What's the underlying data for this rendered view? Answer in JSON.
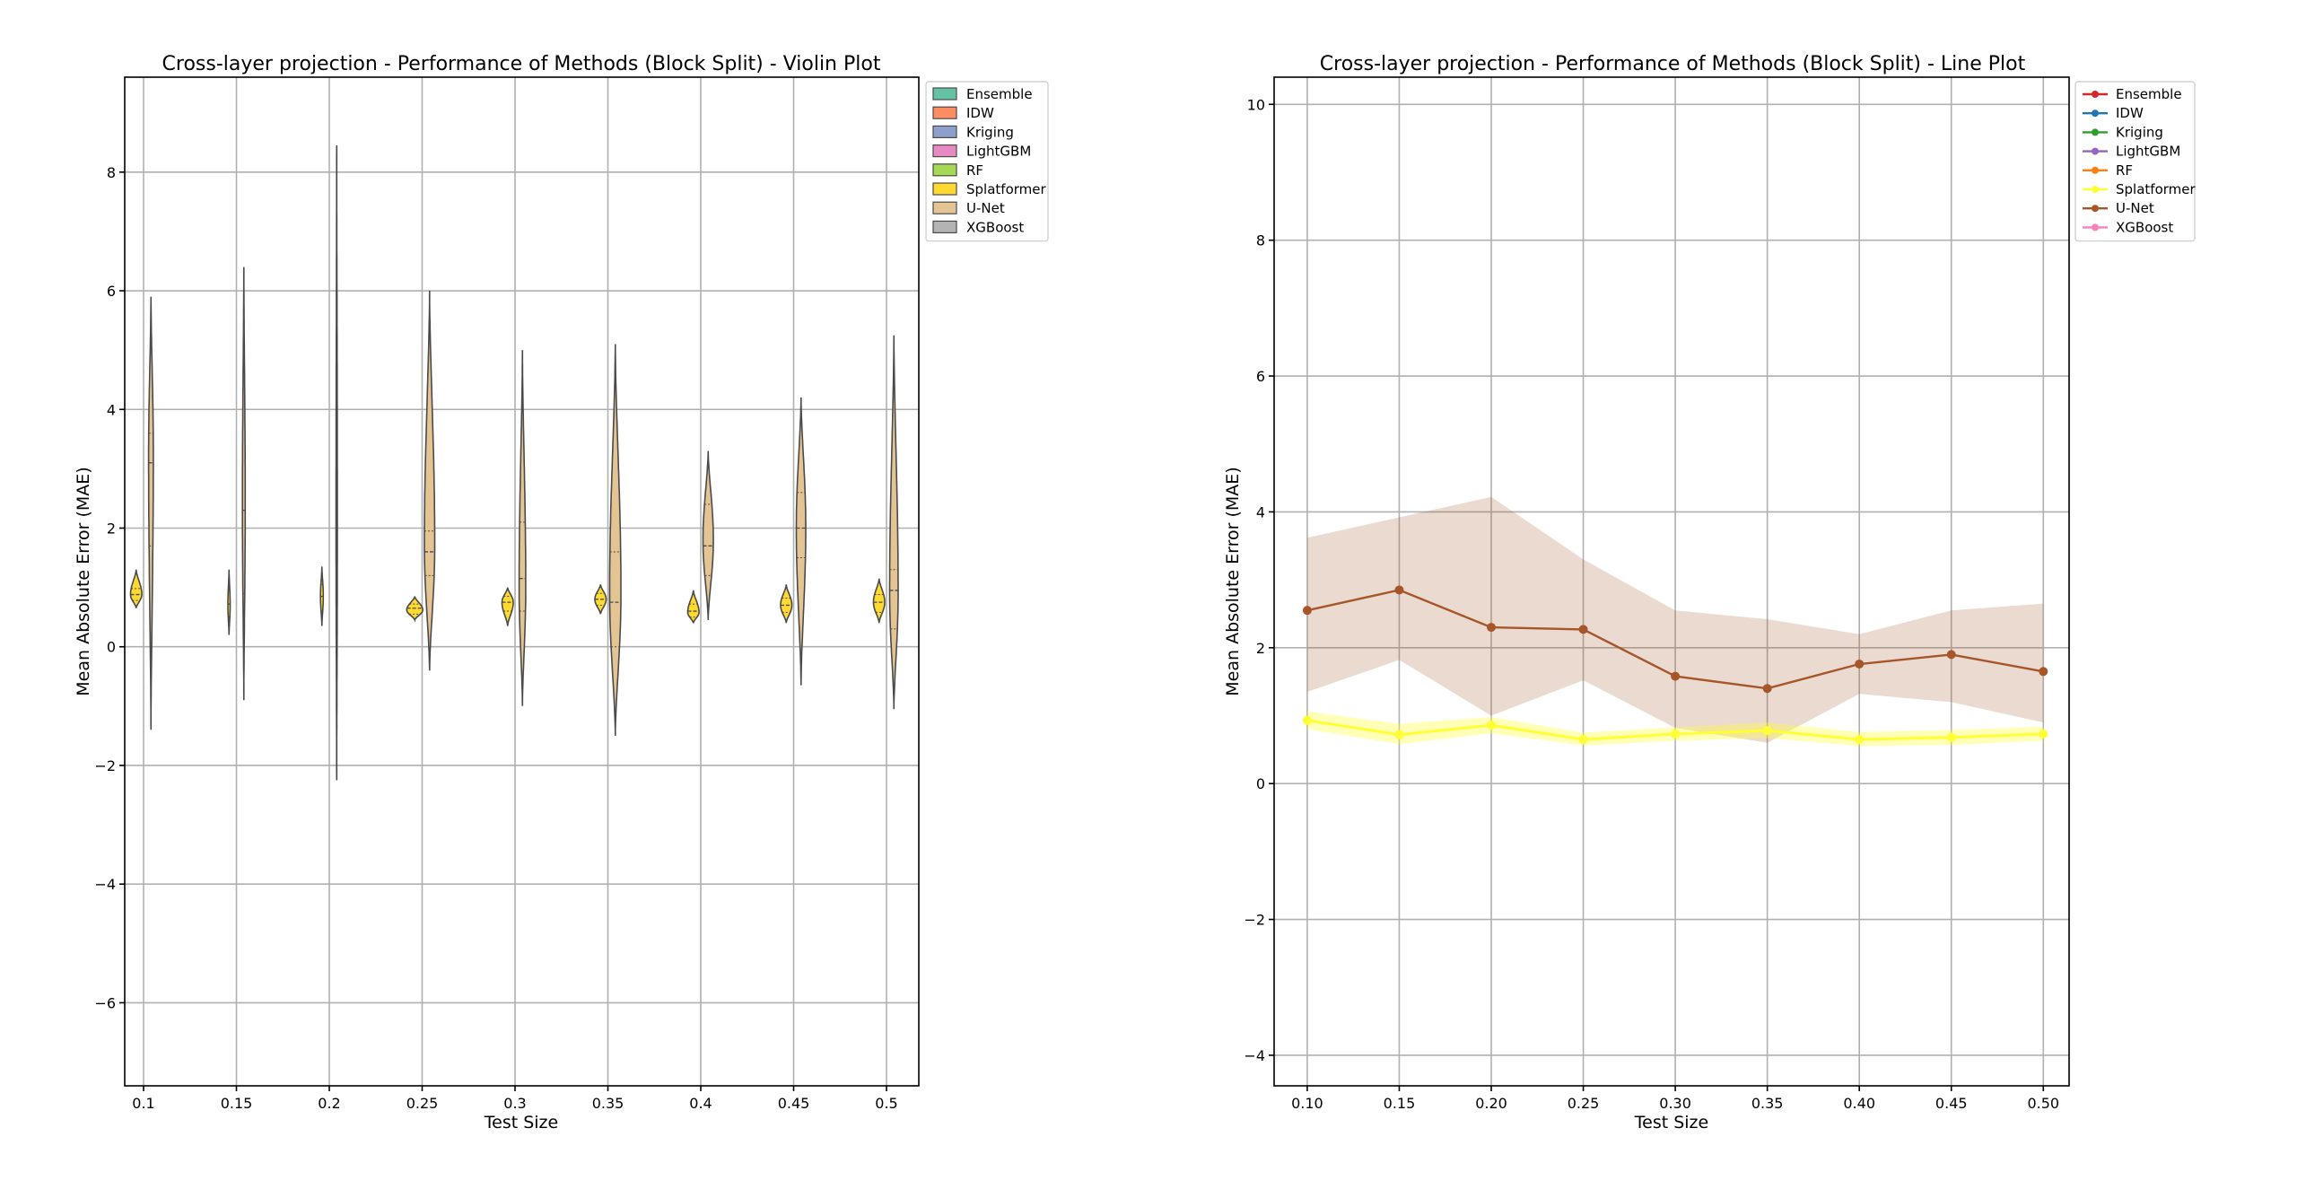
{
  "chart_data": [
    {
      "type": "violin",
      "title": "Cross-layer projection - Performance of Methods (Block Split) - Violin Plot",
      "xlabel": "Test Size",
      "ylabel": "Mean Absolute Error (MAE)",
      "categories": [
        "0.1",
        "0.15",
        "0.2",
        "0.25",
        "0.3",
        "0.35",
        "0.4",
        "0.45",
        "0.5"
      ],
      "ylim": [
        -7.4,
        9.6
      ],
      "yticks": [
        -6,
        -4,
        -2,
        0,
        2,
        4,
        6,
        8
      ],
      "grid": true,
      "legend_position": "outside-top-right",
      "legend": [
        {
          "name": "Ensemble",
          "color": "#66c2a5"
        },
        {
          "name": "IDW",
          "color": "#fc8d62"
        },
        {
          "name": "Kriging",
          "color": "#8da0cb"
        },
        {
          "name": "LightGBM",
          "color": "#e78ac3"
        },
        {
          "name": "RF",
          "color": "#a6d854"
        },
        {
          "name": "Splatformer",
          "color": "#ffd92f"
        },
        {
          "name": "U-Net",
          "color": "#e5c494"
        },
        {
          "name": "XGBoost",
          "color": "#b3b3b3"
        }
      ],
      "series": [
        {
          "name": "Splatformer",
          "violins": [
            {
              "min": 0.65,
              "max": 1.3,
              "q1": 0.78,
              "median": 0.88,
              "q3": 0.98,
              "mode": 0.88,
              "width": 0.6
            },
            {
              "min": 0.2,
              "max": 1.3,
              "q1": 0.5,
              "median": 0.72,
              "q3": 0.95,
              "mode": 0.7,
              "width": 0.12
            },
            {
              "min": 0.35,
              "max": 1.35,
              "q1": 0.6,
              "median": 0.85,
              "q3": 1.05,
              "mode": 0.85,
              "width": 0.15
            },
            {
              "min": 0.45,
              "max": 0.85,
              "q1": 0.55,
              "median": 0.65,
              "q3": 0.72,
              "mode": 0.62,
              "width": 0.85
            },
            {
              "min": 0.35,
              "max": 1.0,
              "q1": 0.6,
              "median": 0.75,
              "q3": 0.85,
              "mode": 0.75,
              "width": 0.6
            },
            {
              "min": 0.55,
              "max": 1.05,
              "q1": 0.7,
              "median": 0.8,
              "q3": 0.9,
              "mode": 0.8,
              "width": 0.6
            },
            {
              "min": 0.4,
              "max": 0.95,
              "q1": 0.5,
              "median": 0.6,
              "q3": 0.72,
              "mode": 0.58,
              "width": 0.6
            },
            {
              "min": 0.4,
              "max": 1.05,
              "q1": 0.58,
              "median": 0.7,
              "q3": 0.82,
              "mode": 0.7,
              "width": 0.6
            },
            {
              "min": 0.4,
              "max": 1.15,
              "q1": 0.58,
              "median": 0.75,
              "q3": 0.88,
              "mode": 0.75,
              "width": 0.6
            }
          ]
        },
        {
          "name": "U-Net",
          "violins": [
            {
              "min": -1.4,
              "max": 5.9,
              "q1": 1.7,
              "median": 3.1,
              "q3": 3.6,
              "mode": 3.2,
              "width": 0.25
            },
            {
              "min": -0.9,
              "max": 6.4,
              "q1": 0.9,
              "median": 2.3,
              "q3": 4.8,
              "mode": 2.4,
              "width": 0.15
            },
            {
              "min": -2.25,
              "max": 8.45,
              "q1": 0.4,
              "median": 2.0,
              "q3": 3.5,
              "mode": 2.0,
              "width": 0.07
            },
            {
              "min": -0.4,
              "max": 6.0,
              "q1": 1.2,
              "median": 1.6,
              "q3": 1.95,
              "mode": 1.7,
              "width": 0.55
            },
            {
              "min": -1.0,
              "max": 5.0,
              "q1": 0.6,
              "median": 1.15,
              "q3": 2.1,
              "mode": 1.0,
              "width": 0.35
            },
            {
              "min": -1.5,
              "max": 5.1,
              "q1": 0.0,
              "median": 0.75,
              "q3": 1.6,
              "mode": 0.9,
              "width": 0.6
            },
            {
              "min": 0.45,
              "max": 3.3,
              "q1": 1.2,
              "median": 1.7,
              "q3": 2.4,
              "mode": 1.8,
              "width": 0.55
            },
            {
              "min": -0.65,
              "max": 4.2,
              "q1": 1.5,
              "median": 2.0,
              "q3": 2.6,
              "mode": 2.0,
              "width": 0.5
            },
            {
              "min": -1.05,
              "max": 5.25,
              "q1": 0.3,
              "median": 0.95,
              "q3": 1.3,
              "mode": 0.9,
              "width": 0.45
            }
          ]
        }
      ]
    },
    {
      "type": "line",
      "title": "Cross-layer projection - Performance of Methods (Block Split) - Line Plot",
      "xlabel": "Test Size",
      "ylabel": "Mean Absolute Error (MAE)",
      "x": [
        0.1,
        0.15,
        0.2,
        0.25,
        0.3,
        0.35,
        0.4,
        0.45,
        0.5
      ],
      "xticklabels": [
        "0.10",
        "0.15",
        "0.20",
        "0.25",
        "0.30",
        "0.35",
        "0.40",
        "0.45",
        "0.50"
      ],
      "xlim": [
        0.082,
        0.514
      ],
      "ylim": [
        -4.45,
        10.4
      ],
      "yticks": [
        -4,
        -2,
        0,
        2,
        4,
        6,
        8,
        10
      ],
      "grid": true,
      "legend_position": "top-right",
      "legend": [
        {
          "name": "Ensemble",
          "color": "#d62728"
        },
        {
          "name": "IDW",
          "color": "#1f77b4"
        },
        {
          "name": "Kriging",
          "color": "#2ca02c"
        },
        {
          "name": "LightGBM",
          "color": "#9467bd"
        },
        {
          "name": "RF",
          "color": "#ff7f0e"
        },
        {
          "name": "Splatformer",
          "color": "#ffff33"
        },
        {
          "name": "U-Net",
          "color": "#a65628"
        },
        {
          "name": "XGBoost",
          "color": "#f781bf"
        }
      ],
      "series": [
        {
          "name": "U-Net",
          "color": "#a65628",
          "values": [
            2.55,
            2.85,
            2.3,
            2.27,
            1.58,
            1.4,
            1.76,
            1.9,
            1.65
          ],
          "ci_low": [
            1.35,
            1.82,
            1.0,
            1.52,
            0.82,
            0.6,
            1.32,
            1.2,
            0.9
          ],
          "ci_high": [
            3.62,
            3.92,
            4.22,
            3.3,
            2.55,
            2.42,
            2.2,
            2.55,
            2.65
          ]
        },
        {
          "name": "Splatformer",
          "color": "#ffff33",
          "values": [
            0.93,
            0.72,
            0.86,
            0.65,
            0.73,
            0.78,
            0.65,
            0.68,
            0.73
          ],
          "ci_low": [
            0.8,
            0.58,
            0.74,
            0.56,
            0.63,
            0.67,
            0.55,
            0.57,
            0.63
          ],
          "ci_high": [
            1.06,
            0.88,
            0.98,
            0.75,
            0.83,
            0.9,
            0.76,
            0.79,
            0.84
          ]
        }
      ]
    }
  ]
}
